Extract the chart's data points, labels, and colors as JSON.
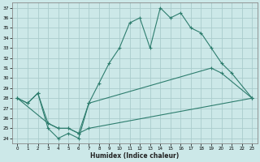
{
  "xlabel": "Humidex (Indice chaleur)",
  "bg_color": "#cce8e8",
  "grid_color": "#aacccc",
  "line_color": "#2e7d6e",
  "xlim": [
    -0.5,
    23.5
  ],
  "ylim": [
    23.5,
    37.5
  ],
  "xticks": [
    0,
    1,
    2,
    3,
    4,
    5,
    6,
    7,
    8,
    9,
    10,
    11,
    12,
    13,
    14,
    15,
    16,
    17,
    18,
    19,
    20,
    21,
    22,
    23
  ],
  "yticks": [
    24,
    25,
    26,
    27,
    28,
    29,
    30,
    31,
    32,
    33,
    34,
    35,
    36,
    37
  ],
  "line1_x": [
    0,
    1,
    2,
    3,
    4,
    5,
    6,
    7,
    8,
    9,
    10,
    11,
    12,
    13,
    14,
    15,
    16,
    17,
    18,
    19,
    20,
    21,
    23
  ],
  "line1_y": [
    28.0,
    27.5,
    28.5,
    25.0,
    24.0,
    24.5,
    24.0,
    27.5,
    29.5,
    31.5,
    33.0,
    35.5,
    36.0,
    33.0,
    37.0,
    36.0,
    36.5,
    35.0,
    34.5,
    33.0,
    31.5,
    30.5,
    28.0
  ],
  "line2_x": [
    0,
    1,
    2,
    3,
    4,
    5,
    6,
    7,
    19,
    20,
    23
  ],
  "line2_y": [
    28.0,
    27.5,
    28.5,
    25.5,
    25.0,
    25.0,
    24.5,
    27.5,
    31.0,
    30.5,
    28.0
  ],
  "line3_x": [
    0,
    3,
    4,
    5,
    6,
    7,
    23
  ],
  "line3_y": [
    28.0,
    25.5,
    25.0,
    25.0,
    24.5,
    25.0,
    28.0
  ]
}
